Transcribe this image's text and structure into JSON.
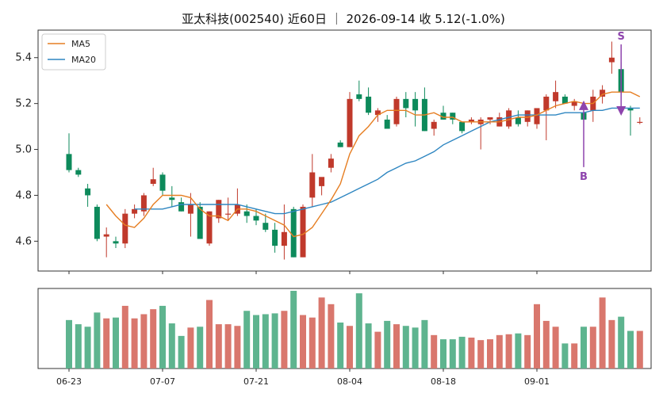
{
  "chart_data": {
    "type": "candlestick",
    "title": "亚太科技(002540) 近60日 ｜ 2026-09-14 收 5.12(-1.0%)",
    "colors": {
      "up": "#c0392b",
      "down": "#0d8a5b",
      "ma5": "#e67e22",
      "ma20": "#2e86c1",
      "vol_up": "#d9776d",
      "vol_down": "#5eb48f",
      "annotation": "#8e44ad"
    },
    "ylim": [
      4.47,
      5.52
    ],
    "yticks": [
      "4.6",
      "4.8",
      "5.0",
      "5.2",
      "5.4"
    ],
    "xtick_labels": [
      {
        "index": 0,
        "label": "06-23"
      },
      {
        "index": 10,
        "label": "07-07"
      },
      {
        "index": 20,
        "label": "07-21"
      },
      {
        "index": 30,
        "label": "08-04"
      },
      {
        "index": 40,
        "label": "08-18"
      },
      {
        "index": 50,
        "label": "09-01"
      }
    ],
    "legend": {
      "placement": "top-left",
      "entries": [
        "MA5",
        "MA20"
      ]
    },
    "ohlc": [
      [
        4.98,
        5.07,
        4.9,
        4.91
      ],
      [
        4.91,
        4.92,
        4.88,
        4.89
      ],
      [
        4.83,
        4.85,
        4.75,
        4.8
      ],
      [
        4.75,
        4.76,
        4.6,
        4.61
      ],
      [
        4.62,
        4.66,
        4.53,
        4.63
      ],
      [
        4.6,
        4.62,
        4.57,
        4.59
      ],
      [
        4.59,
        4.74,
        4.57,
        4.72
      ],
      [
        4.72,
        4.76,
        4.7,
        4.74
      ],
      [
        4.73,
        4.81,
        4.71,
        4.8
      ],
      [
        4.85,
        4.92,
        4.84,
        4.87
      ],
      [
        4.89,
        4.9,
        4.8,
        4.82
      ],
      [
        4.79,
        4.84,
        4.75,
        4.78
      ],
      [
        4.77,
        4.79,
        4.73,
        4.73
      ],
      [
        4.72,
        4.81,
        4.62,
        4.76
      ],
      [
        4.75,
        4.77,
        4.61,
        4.61
      ],
      [
        4.59,
        4.73,
        4.58,
        4.73
      ],
      [
        4.7,
        4.78,
        4.68,
        4.78
      ],
      [
        4.72,
        4.79,
        4.69,
        4.72
      ],
      [
        4.72,
        4.83,
        4.71,
        4.76
      ],
      [
        4.73,
        4.76,
        4.68,
        4.71
      ],
      [
        4.71,
        4.74,
        4.67,
        4.69
      ],
      [
        4.68,
        4.72,
        4.64,
        4.65
      ],
      [
        4.65,
        4.68,
        4.55,
        4.58
      ],
      [
        4.58,
        4.76,
        4.52,
        4.64
      ],
      [
        4.74,
        4.75,
        4.53,
        4.53
      ],
      [
        4.53,
        4.76,
        4.53,
        4.75
      ],
      [
        4.79,
        4.98,
        4.75,
        4.9
      ],
      [
        4.84,
        4.87,
        4.8,
        4.88
      ],
      [
        4.92,
        4.98,
        4.9,
        4.96
      ],
      [
        5.03,
        5.04,
        5.01,
        5.01
      ],
      [
        5.01,
        5.25,
        5.01,
        5.22
      ],
      [
        5.24,
        5.3,
        5.21,
        5.22
      ],
      [
        5.23,
        5.27,
        5.15,
        5.16
      ],
      [
        5.15,
        5.18,
        5.12,
        5.17
      ],
      [
        5.13,
        5.15,
        5.09,
        5.09
      ],
      [
        5.11,
        5.23,
        5.1,
        5.22
      ],
      [
        5.22,
        5.25,
        5.14,
        5.18
      ],
      [
        5.22,
        5.25,
        5.1,
        5.17
      ],
      [
        5.22,
        5.27,
        5.08,
        5.08
      ],
      [
        5.09,
        5.13,
        5.06,
        5.12
      ],
      [
        5.16,
        5.19,
        5.13,
        5.13
      ],
      [
        5.16,
        5.16,
        5.11,
        5.13
      ],
      [
        5.12,
        5.12,
        5.07,
        5.08
      ],
      [
        5.12,
        5.14,
        5.11,
        5.13
      ],
      [
        5.11,
        5.14,
        5.0,
        5.13
      ],
      [
        5.13,
        5.14,
        5.11,
        5.14
      ],
      [
        5.1,
        5.16,
        5.1,
        5.14
      ],
      [
        5.1,
        5.18,
        5.09,
        5.17
      ],
      [
        5.14,
        5.17,
        5.1,
        5.11
      ],
      [
        5.12,
        5.17,
        5.1,
        5.17
      ],
      [
        5.11,
        5.18,
        5.09,
        5.18
      ],
      [
        5.17,
        5.24,
        5.04,
        5.23
      ],
      [
        5.21,
        5.3,
        5.18,
        5.25
      ],
      [
        5.23,
        5.24,
        5.2,
        5.2
      ],
      [
        5.19,
        5.22,
        5.17,
        5.21
      ],
      [
        5.16,
        5.19,
        5.14,
        5.13
      ],
      [
        5.17,
        5.26,
        5.12,
        5.23
      ],
      [
        5.23,
        5.28,
        5.2,
        5.26
      ],
      [
        5.38,
        5.47,
        5.33,
        5.4
      ],
      [
        5.35,
        5.38,
        5.24,
        5.25
      ],
      [
        5.18,
        5.19,
        5.06,
        5.17
      ],
      [
        5.12,
        5.14,
        5.11,
        5.12
      ]
    ],
    "ma5": [
      null,
      null,
      null,
      null,
      4.76,
      4.71,
      4.67,
      4.66,
      4.7,
      4.76,
      4.8,
      4.8,
      4.8,
      4.79,
      4.74,
      4.71,
      4.71,
      4.69,
      4.74,
      4.74,
      4.73,
      4.71,
      4.69,
      4.67,
      4.62,
      4.63,
      4.66,
      4.72,
      4.78,
      4.85,
      4.98,
      5.06,
      5.1,
      5.15,
      5.17,
      5.17,
      5.17,
      5.15,
      5.15,
      5.16,
      5.14,
      5.14,
      5.12,
      5.12,
      5.12,
      5.12,
      5.12,
      5.13,
      5.14,
      5.14,
      5.15,
      5.17,
      5.19,
      5.2,
      5.21,
      5.2,
      5.2,
      5.24,
      5.25,
      5.25,
      5.25,
      5.23
    ],
    "ma20": [
      null,
      null,
      null,
      null,
      null,
      null,
      null,
      4.74,
      4.74,
      4.74,
      4.74,
      4.75,
      4.76,
      4.76,
      4.76,
      4.76,
      4.76,
      4.76,
      4.76,
      4.75,
      4.74,
      4.73,
      4.72,
      4.72,
      4.73,
      4.74,
      4.75,
      4.76,
      4.77,
      4.79,
      4.81,
      4.83,
      4.85,
      4.87,
      4.9,
      4.92,
      4.94,
      4.95,
      4.97,
      4.99,
      5.02,
      5.04,
      5.06,
      5.08,
      5.1,
      5.12,
      5.13,
      5.14,
      5.15,
      5.15,
      5.15,
      5.15,
      5.15,
      5.16,
      5.16,
      5.16,
      5.17,
      5.17,
      5.18,
      5.18,
      5.18,
      5.18
    ],
    "volume": [
      58,
      53,
      50,
      67,
      60,
      61,
      75,
      60,
      65,
      71,
      75,
      54,
      39,
      49,
      50,
      82,
      53,
      53,
      51,
      69,
      64,
      65,
      66,
      69,
      93,
      64,
      61,
      85,
      77,
      55,
      51,
      90,
      54,
      44,
      57,
      53,
      51,
      49,
      58,
      40,
      35,
      35,
      38,
      37,
      34,
      35,
      40,
      41,
      42,
      40,
      77,
      57,
      50,
      30,
      30,
      50,
      50,
      85,
      58,
      62,
      45,
      45
    ],
    "annotations": [
      {
        "label": "B",
        "index": 55,
        "value": 5.22
      },
      {
        "label": "S",
        "index": 59,
        "value": 5.14
      }
    ]
  }
}
